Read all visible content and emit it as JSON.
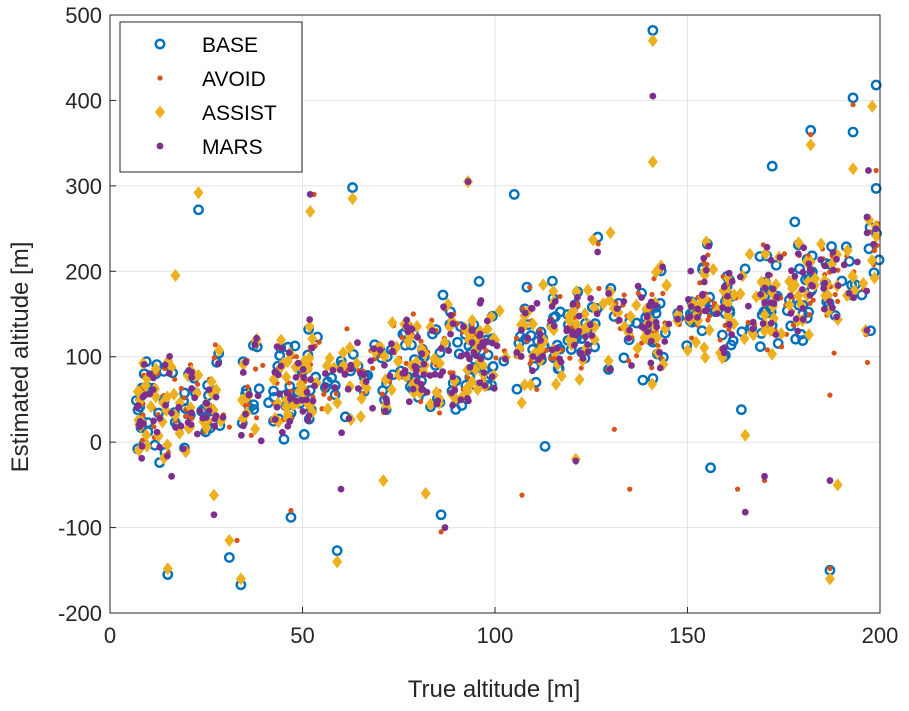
{
  "chart_data": {
    "type": "scatter",
    "title": "",
    "xlabel": "True altitude [m]",
    "ylabel": "Estimated altitude [m]",
    "xlim": [
      0,
      200
    ],
    "ylim": [
      -200,
      500
    ],
    "xticks": [
      0,
      50,
      100,
      150,
      200
    ],
    "yticks": [
      -200,
      -100,
      0,
      100,
      200,
      300,
      400,
      500
    ],
    "grid": true,
    "legend_position": "top-left",
    "trend": {
      "intercept": 25,
      "slope": 0.85,
      "spread": 55,
      "points_per_series": 260
    },
    "series": [
      {
        "name": "BASE",
        "marker": "circle-open",
        "color": "#0072BD",
        "outliers": [
          [
            15,
            -155
          ],
          [
            23,
            272
          ],
          [
            31,
            -135
          ],
          [
            34,
            -167
          ],
          [
            47,
            -88
          ],
          [
            59,
            -127
          ],
          [
            63,
            298
          ],
          [
            86,
            -85
          ],
          [
            105,
            290
          ],
          [
            141,
            482
          ],
          [
            156,
            -30
          ],
          [
            172,
            323
          ],
          [
            182,
            365
          ],
          [
            187,
            -150
          ],
          [
            193,
            403
          ],
          [
            199,
            418
          ],
          [
            193,
            363
          ],
          [
            199,
            297
          ],
          [
            113,
            -5
          ],
          [
            164,
            38
          ]
        ]
      },
      {
        "name": "AVOID",
        "marker": "dot",
        "color": "#D95319",
        "outliers": [
          [
            15,
            -148
          ],
          [
            23,
            290
          ],
          [
            33,
            -115
          ],
          [
            47,
            -80
          ],
          [
            53,
            290
          ],
          [
            86,
            -105
          ],
          [
            93,
            302
          ],
          [
            107,
            -62
          ],
          [
            135,
            -55
          ],
          [
            141,
            470
          ],
          [
            163,
            -55
          ],
          [
            170,
            -45
          ],
          [
            182,
            360
          ],
          [
            187,
            -148
          ],
          [
            193,
            395
          ],
          [
            199,
            318
          ],
          [
            187,
            55
          ],
          [
            131,
            15
          ]
        ]
      },
      {
        "name": "ASSIST",
        "marker": "diamond",
        "color": "#EDB120",
        "outliers": [
          [
            15,
            -148
          ],
          [
            17,
            195
          ],
          [
            23,
            292
          ],
          [
            27,
            -62
          ],
          [
            31,
            -115
          ],
          [
            34,
            -160
          ],
          [
            52,
            270
          ],
          [
            59,
            -140
          ],
          [
            63,
            285
          ],
          [
            71,
            -45
          ],
          [
            82,
            -60
          ],
          [
            93,
            305
          ],
          [
            141,
            470
          ],
          [
            141,
            328
          ],
          [
            165,
            8
          ],
          [
            182,
            348
          ],
          [
            187,
            -160
          ],
          [
            193,
            320
          ],
          [
            198,
            393
          ],
          [
            189,
            -50
          ],
          [
            121,
            -20
          ]
        ]
      },
      {
        "name": "MARS",
        "marker": "dot",
        "color": "#7E2F8E",
        "outliers": [
          [
            16,
            -40
          ],
          [
            27,
            -85
          ],
          [
            52,
            290
          ],
          [
            87,
            -100
          ],
          [
            93,
            305
          ],
          [
            141,
            405
          ],
          [
            165,
            -82
          ],
          [
            170,
            -40
          ],
          [
            187,
            -45
          ],
          [
            197,
            318
          ],
          [
            121,
            -22
          ],
          [
            60,
            -55
          ]
        ]
      }
    ]
  }
}
